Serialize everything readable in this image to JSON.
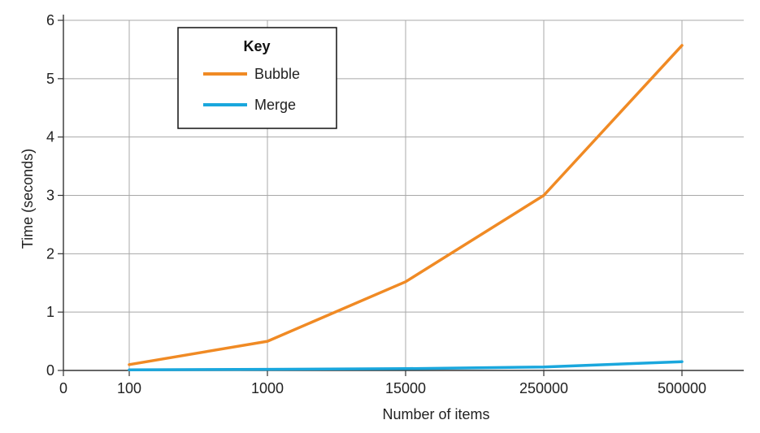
{
  "chart_data": {
    "type": "line",
    "categories": [
      "100",
      "1000",
      "15000",
      "250000",
      "500000"
    ],
    "x_origin_label": "0",
    "xlabel": "Number of items",
    "ylabel": "Time (seconds)",
    "ylim": [
      0,
      6
    ],
    "yticks": [
      "0",
      "1",
      "2",
      "3",
      "4",
      "5",
      "6"
    ],
    "grid": true,
    "legend": {
      "title": "Key",
      "placement": "top-left"
    },
    "series": [
      {
        "name": "Bubble",
        "color": "#f08a24",
        "values": [
          0.1,
          0.5,
          1.52,
          3.0,
          5.57
        ]
      },
      {
        "name": "Merge",
        "color": "#1aa7dd",
        "values": [
          0.01,
          0.02,
          0.03,
          0.06,
          0.15
        ]
      }
    ]
  }
}
